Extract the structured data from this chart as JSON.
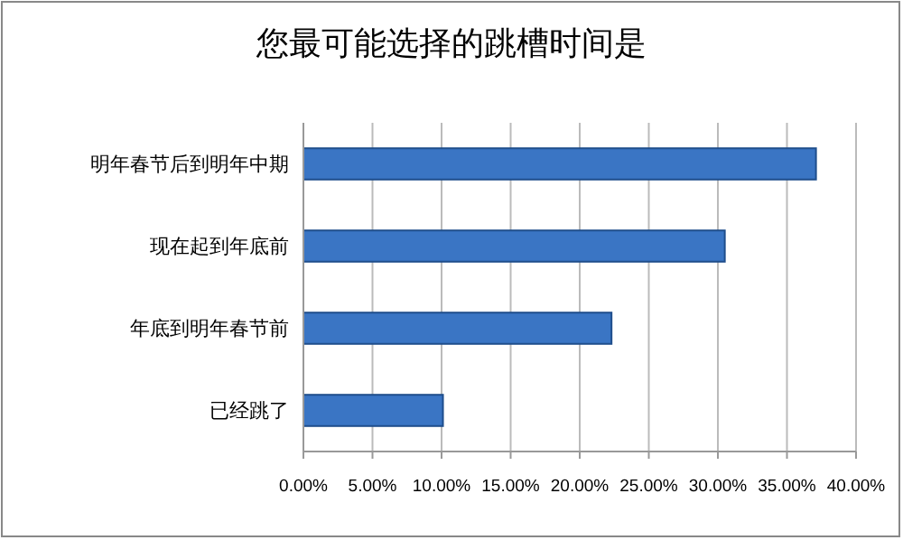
{
  "chart_data": {
    "type": "bar",
    "title": "您最可能选择的跳槽时间是",
    "orientation": "horizontal",
    "categories": [
      "明年春节后到明年中期",
      "现在起到年底前",
      "年底到明年春节前",
      "已经跳了"
    ],
    "values": [
      37.1,
      30.5,
      22.3,
      10.1
    ],
    "color": "#3a75c4",
    "xlim": [
      0,
      40
    ],
    "xticks": [
      {
        "value": 0,
        "label": "0.00%"
      },
      {
        "value": 5,
        "label": "5.00%"
      },
      {
        "value": 10,
        "label": "10.00%"
      },
      {
        "value": 15,
        "label": "15.00%"
      },
      {
        "value": 20,
        "label": "20.00%"
      },
      {
        "value": 25,
        "label": "25.00%"
      },
      {
        "value": 30,
        "label": "30.00%"
      },
      {
        "value": 35,
        "label": "35.00%"
      },
      {
        "value": 40,
        "label": "40.00%"
      }
    ],
    "grid": "x"
  }
}
